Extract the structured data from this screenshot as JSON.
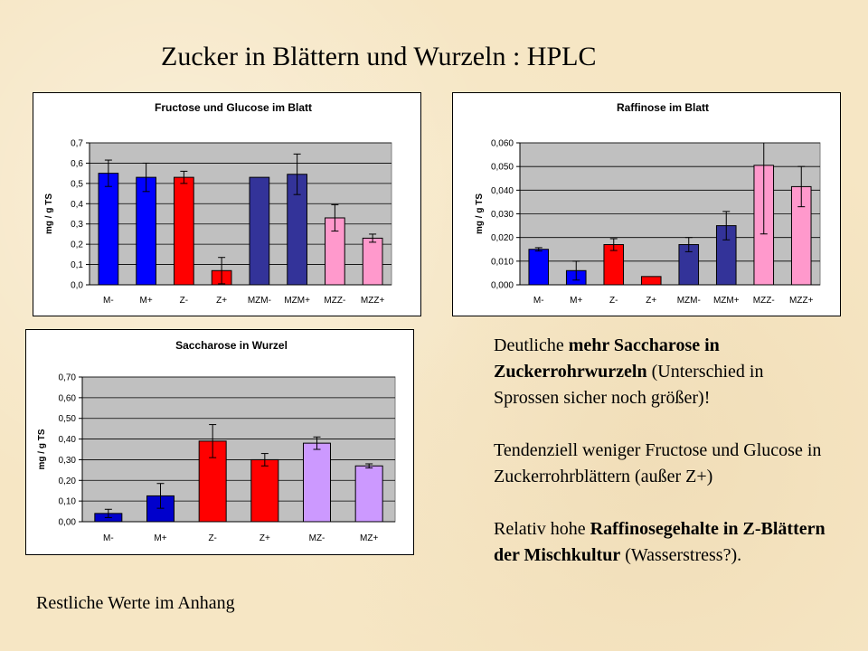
{
  "slide": {
    "title": "Zucker in  Blättern und Wurzeln : HPLC",
    "footnote": "Restliche Werte im Anhang",
    "notes": {
      "p1_pre": "Deutliche ",
      "p1_bold": "mehr Saccharose in Zuckerrohrwurzeln",
      "p1_post": "  (Unterschied in Sprossen sicher noch größer)!",
      "p2": "Tendenziell weniger Fructose und Glucose in Zuckerrohrblättern (außer Z+)",
      "p3_pre": "Relativ hohe ",
      "p3_bold": "Raffinosegehalte in Z-Blättern der Mischkultur",
      "p3_post": " (Wasserstress?)."
    }
  },
  "chart_data": [
    {
      "type": "bar",
      "title": "Fructose und Glucose im Blatt",
      "ylabel": "mg / g TS",
      "xlabel": "",
      "ylim": [
        0,
        0.7
      ],
      "yticks": [
        0,
        0.1,
        0.2,
        0.3,
        0.4,
        0.5,
        0.6,
        0.7
      ],
      "ytick_labels": [
        "0,0",
        "0,1",
        "0,2",
        "0,3",
        "0,4",
        "0,5",
        "0,6",
        "0,7"
      ],
      "grid": true,
      "categories": [
        "M-",
        "M+",
        "Z-",
        "Z+",
        "MZM-",
        "MZM+",
        "MZZ-",
        "MZZ+"
      ],
      "values": [
        0.55,
        0.53,
        0.53,
        0.07,
        0.53,
        0.545,
        0.33,
        0.23
      ],
      "errors": [
        0.065,
        0.07,
        0.03,
        0.065,
        0.0,
        0.1,
        0.065,
        0.02
      ],
      "colors": [
        "#0000ff",
        "#0000ff",
        "#ff0000",
        "#ff0000",
        "#333399",
        "#333399",
        "#ff99cc",
        "#ff99cc"
      ]
    },
    {
      "type": "bar",
      "title": "Raffinose im Blatt",
      "ylabel": "mg / g TS",
      "xlabel": "",
      "ylim": [
        0,
        0.06
      ],
      "yticks": [
        0,
        0.01,
        0.02,
        0.03,
        0.04,
        0.05,
        0.06
      ],
      "ytick_labels": [
        "0,000",
        "0,010",
        "0,020",
        "0,030",
        "0,040",
        "0,050",
        "0,060"
      ],
      "grid": true,
      "categories": [
        "M-",
        "M+",
        "Z-",
        "Z+",
        "MZM-",
        "MZM+",
        "MZZ-",
        "MZZ+"
      ],
      "values": [
        0.015,
        0.006,
        0.017,
        0.0035,
        0.017,
        0.025,
        0.0505,
        0.0415
      ],
      "errors": [
        0.0007,
        0.004,
        0.0025,
        0.0,
        0.003,
        0.006,
        0.029,
        0.0085
      ],
      "colors": [
        "#0000ff",
        "#0000ff",
        "#ff0000",
        "#ff0000",
        "#333399",
        "#333399",
        "#ff99cc",
        "#ff99cc"
      ]
    },
    {
      "type": "bar",
      "title": "Saccharose in Wurzel",
      "ylabel": "mg / g TS",
      "xlabel": "",
      "ylim": [
        0,
        0.7
      ],
      "yticks": [
        0,
        0.1,
        0.2,
        0.3,
        0.4,
        0.5,
        0.6,
        0.7
      ],
      "ytick_labels": [
        "0,00",
        "0,10",
        "0,20",
        "0,30",
        "0,40",
        "0,50",
        "0,60",
        "0,70"
      ],
      "grid": true,
      "categories": [
        "M-",
        "M+",
        "Z-",
        "Z+",
        "MZ-",
        "MZ+"
      ],
      "values": [
        0.04,
        0.125,
        0.39,
        0.3,
        0.38,
        0.27
      ],
      "errors": [
        0.02,
        0.06,
        0.08,
        0.03,
        0.03,
        0.01
      ],
      "colors": [
        "#0000cc",
        "#0000cc",
        "#ff0000",
        "#ff0000",
        "#cc99ff",
        "#cc99ff"
      ]
    }
  ]
}
